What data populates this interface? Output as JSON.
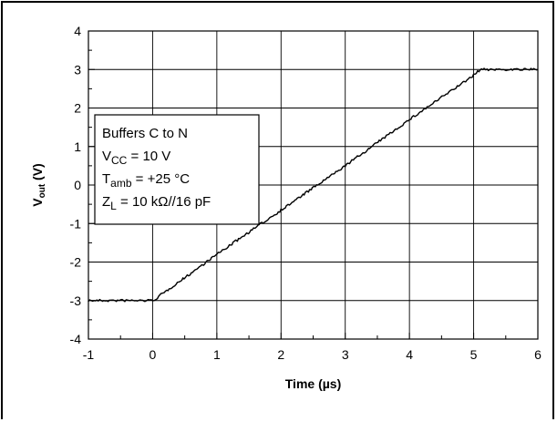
{
  "chart_data": {
    "type": "line",
    "xlabel": "Time (µs)",
    "ylabel": {
      "main": "V",
      "sub": "out",
      "unit": " (V)"
    },
    "xlim": [
      -1,
      6
    ],
    "ylim": [
      -4,
      4
    ],
    "xticks": [
      "-1",
      "0",
      "1",
      "2",
      "3",
      "4",
      "5",
      "6"
    ],
    "yticks": [
      "4",
      "3",
      "2",
      "1",
      "0",
      "-1",
      "-2",
      "-3",
      "-4"
    ],
    "grid": true,
    "legend_placement": "left",
    "conditions": [
      {
        "main": "Buffers C to N",
        "sub": "",
        "rest": ""
      },
      {
        "main": "V",
        "sub": "CC",
        "rest": " = 10 V"
      },
      {
        "main": "T",
        "sub": "amb",
        "rest": " = +25 °C"
      },
      {
        "main": "Z",
        "sub": "L",
        "rest": "  = 10 kΩ//16 pF"
      }
    ],
    "series": [
      {
        "color": "#000000",
        "x": [
          -1.0,
          -0.5,
          0.0,
          0.05,
          1.0,
          2.0,
          3.0,
          4.0,
          5.0,
          5.1,
          5.5,
          6.0
        ],
        "y": [
          -3.0,
          -3.0,
          -3.0,
          -2.95,
          -1.8,
          -0.65,
          0.5,
          1.7,
          2.85,
          3.0,
          3.0,
          3.0
        ]
      }
    ]
  }
}
